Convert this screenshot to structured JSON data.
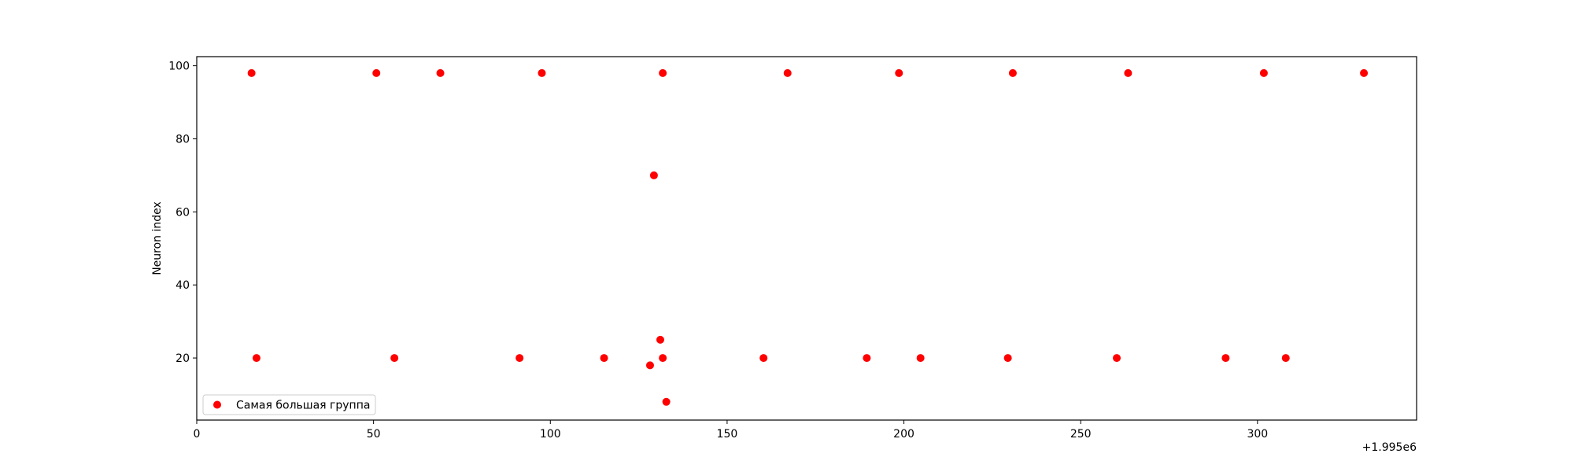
{
  "chart_data": {
    "type": "scatter",
    "title": "",
    "xlabel": "",
    "ylabel": "Neuron index",
    "x_offset_label": "+1.995e6",
    "xlim": [
      0,
      345
    ],
    "ylim": [
      3,
      102.5
    ],
    "xticks": [
      0,
      50,
      100,
      150,
      200,
      250,
      300
    ],
    "yticks": [
      20,
      40,
      60,
      80,
      100
    ],
    "grid": false,
    "legend": {
      "placement": "lower-left",
      "entries": [
        "Самая большая группа"
      ]
    },
    "colors": {
      "points": "#ff0000",
      "axes": "#000000",
      "background": "#ffffff",
      "legend_border": "#cccccc"
    },
    "series": [
      {
        "name": "Самая большая группа",
        "points": [
          {
            "x": 15.5,
            "y": 98
          },
          {
            "x": 50.8,
            "y": 98
          },
          {
            "x": 68.9,
            "y": 98
          },
          {
            "x": 97.6,
            "y": 98
          },
          {
            "x": 131.8,
            "y": 98
          },
          {
            "x": 167.1,
            "y": 98
          },
          {
            "x": 198.6,
            "y": 98
          },
          {
            "x": 230.8,
            "y": 98
          },
          {
            "x": 263.4,
            "y": 98
          },
          {
            "x": 301.8,
            "y": 98
          },
          {
            "x": 330.1,
            "y": 98
          },
          {
            "x": 129.3,
            "y": 70
          },
          {
            "x": 131.1,
            "y": 25
          },
          {
            "x": 16.9,
            "y": 20
          },
          {
            "x": 55.9,
            "y": 20
          },
          {
            "x": 91.3,
            "y": 20
          },
          {
            "x": 115.2,
            "y": 20
          },
          {
            "x": 131.8,
            "y": 20
          },
          {
            "x": 160.3,
            "y": 20
          },
          {
            "x": 189.5,
            "y": 20
          },
          {
            "x": 204.7,
            "y": 20
          },
          {
            "x": 229.4,
            "y": 20
          },
          {
            "x": 260.2,
            "y": 20
          },
          {
            "x": 291.0,
            "y": 20
          },
          {
            "x": 308.0,
            "y": 20
          },
          {
            "x": 128.2,
            "y": 18
          },
          {
            "x": 132.8,
            "y": 8
          }
        ]
      }
    ]
  }
}
